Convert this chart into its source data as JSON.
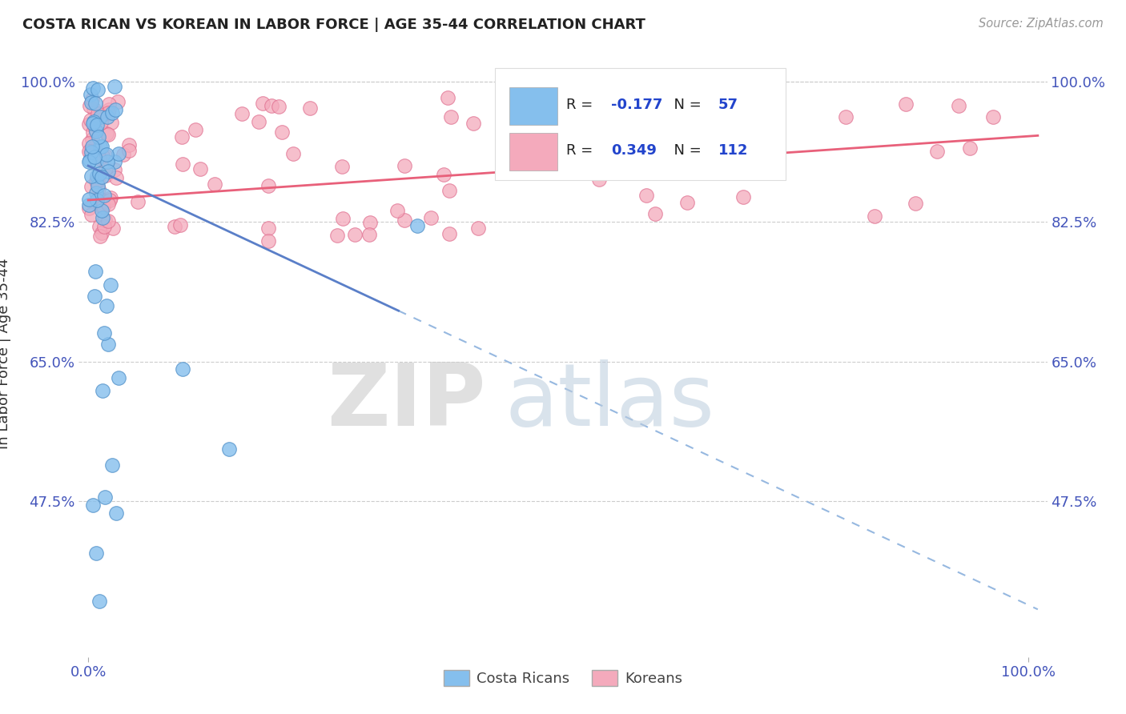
{
  "title": "COSTA RICAN VS KOREAN IN LABOR FORCE | AGE 35-44 CORRELATION CHART",
  "source": "Source: ZipAtlas.com",
  "ylabel": "In Labor Force | Age 35-44",
  "yticks": [
    0.475,
    0.65,
    0.825,
    1.0
  ],
  "ytick_labels": [
    "47.5%",
    "65.0%",
    "82.5%",
    "100.0%"
  ],
  "ymin": 0.28,
  "ymax": 1.04,
  "xmin": -0.01,
  "xmax": 1.02,
  "legend_r1": "-0.177",
  "legend_n1": "57",
  "legend_r2": "0.349",
  "legend_n2": "112",
  "color_cr": "#85BFED",
  "color_kr": "#F4AABC",
  "dot_edge_cr": "#5090C8",
  "dot_edge_kr": "#E07090",
  "line_cr": "#5A7FC8",
  "line_kr": "#E8607A",
  "watermark_zip": "ZIP",
  "watermark_atlas": "atlas",
  "background_color": "#FFFFFF"
}
